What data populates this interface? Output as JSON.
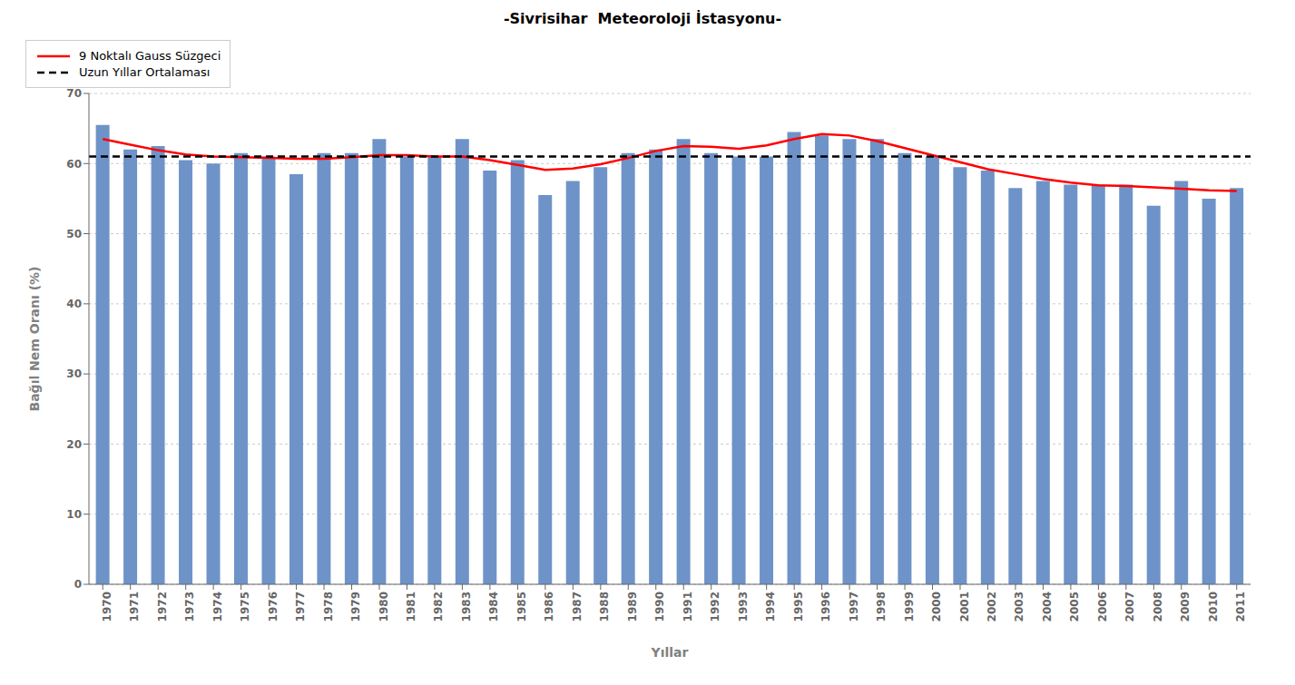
{
  "chart_data": {
    "type": "bar",
    "title": "-Sivrisihar  Meteoroloji İstasyonu-",
    "x_label": "Yıllar",
    "y_label": "Bağıl Nem Oranı (%)",
    "categories": [
      1970,
      1971,
      1972,
      1973,
      1974,
      1975,
      1976,
      1977,
      1978,
      1979,
      1980,
      1981,
      1982,
      1983,
      1984,
      1985,
      1986,
      1987,
      1988,
      1989,
      1990,
      1991,
      1992,
      1993,
      1994,
      1995,
      1996,
      1997,
      1998,
      1999,
      2000,
      2001,
      2002,
      2003,
      2004,
      2005,
      2006,
      2007,
      2008,
      2009,
      2010,
      2011
    ],
    "series": [
      {
        "type": "bar",
        "color": "#6E93C8",
        "values": [
          65.5,
          62.0,
          62.5,
          60.5,
          60.0,
          61.5,
          61.0,
          58.5,
          61.5,
          61.5,
          63.5,
          61.0,
          61.0,
          63.5,
          59.0,
          60.5,
          55.5,
          57.5,
          59.5,
          61.5,
          62.0,
          63.5,
          61.5,
          61.0,
          61.0,
          64.5,
          64.0,
          63.5,
          63.5,
          61.5,
          61.0,
          59.5,
          59.0,
          56.5,
          57.5,
          57.0,
          57.0,
          57.0,
          54.0,
          57.5,
          55.0,
          56.5
        ]
      },
      {
        "name": "9 Noktalı Gauss Süzgeci",
        "type": "line",
        "color": "red",
        "line_style": "solid",
        "values": [
          63.5,
          62.7,
          61.9,
          61.3,
          61.0,
          60.9,
          60.8,
          60.7,
          60.7,
          60.9,
          61.2,
          61.2,
          61.0,
          61.0,
          60.5,
          59.8,
          59.1,
          59.3,
          59.9,
          60.8,
          61.8,
          62.5,
          62.4,
          62.1,
          62.6,
          63.5,
          64.2,
          64.0,
          63.2,
          62.2,
          61.2,
          60.2,
          59.2,
          58.5,
          57.8,
          57.3,
          56.9,
          56.8,
          56.6,
          56.4,
          56.2,
          56.1
        ]
      }
    ],
    "hlines": [
      {
        "name": "Uzun Yıllar Ortalaması",
        "value": 61.0,
        "color": "black",
        "line_style": "dashed"
      }
    ],
    "ylim": [
      0,
      70
    ],
    "yticks": [
      0,
      10,
      20,
      30,
      40,
      50,
      60,
      70
    ],
    "grid": true,
    "legend": "upper right"
  }
}
